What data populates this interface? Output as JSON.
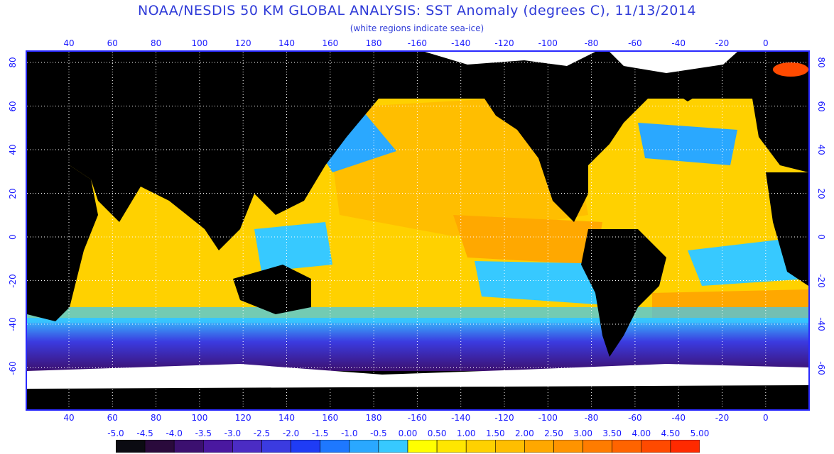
{
  "header": {
    "title": "NOAA/NESDIS 50 KM GLOBAL ANALYSIS: SST Anomaly (degrees C), 11/13/2014",
    "subtitle": "(white regions indicate sea-ice)"
  },
  "map": {
    "lon_ticks": [
      "40",
      "60",
      "80",
      "100",
      "120",
      "140",
      "160",
      "180",
      "-160",
      "-140",
      "-120",
      "-100",
      "-80",
      "-60",
      "-40",
      "-20",
      "0"
    ],
    "lat_ticks": [
      "80",
      "60",
      "40",
      "20",
      "0",
      "-20",
      "-40",
      "-60"
    ],
    "colors": {
      "land": "#000000",
      "ice": "#ffffff",
      "grid": "#ffffff",
      "frame": "#2a2aff"
    }
  },
  "colorbar": {
    "labels": [
      "-5.0",
      "-4.5",
      "-4.0",
      "-3.5",
      "-3.0",
      "-2.5",
      "-2.0",
      "-1.5",
      "-1.0",
      "-0.5",
      "0.00",
      "0.50",
      "1.00",
      "1.50",
      "2.00",
      "2.50",
      "3.00",
      "3.50",
      "4.00",
      "4.50",
      "5.00"
    ],
    "colors": [
      "#0b0b12",
      "#2a0a3c",
      "#3c1070",
      "#4a18a0",
      "#4b2cc4",
      "#3b3be0",
      "#1f3cf5",
      "#1e78ff",
      "#2aa8ff",
      "#37c9ff",
      "#ffff00",
      "#ffe600",
      "#ffd100",
      "#ffbe00",
      "#ffa800",
      "#ff9400",
      "#ff7c00",
      "#ff6400",
      "#ff4a00",
      "#ff2a00"
    ]
  }
}
